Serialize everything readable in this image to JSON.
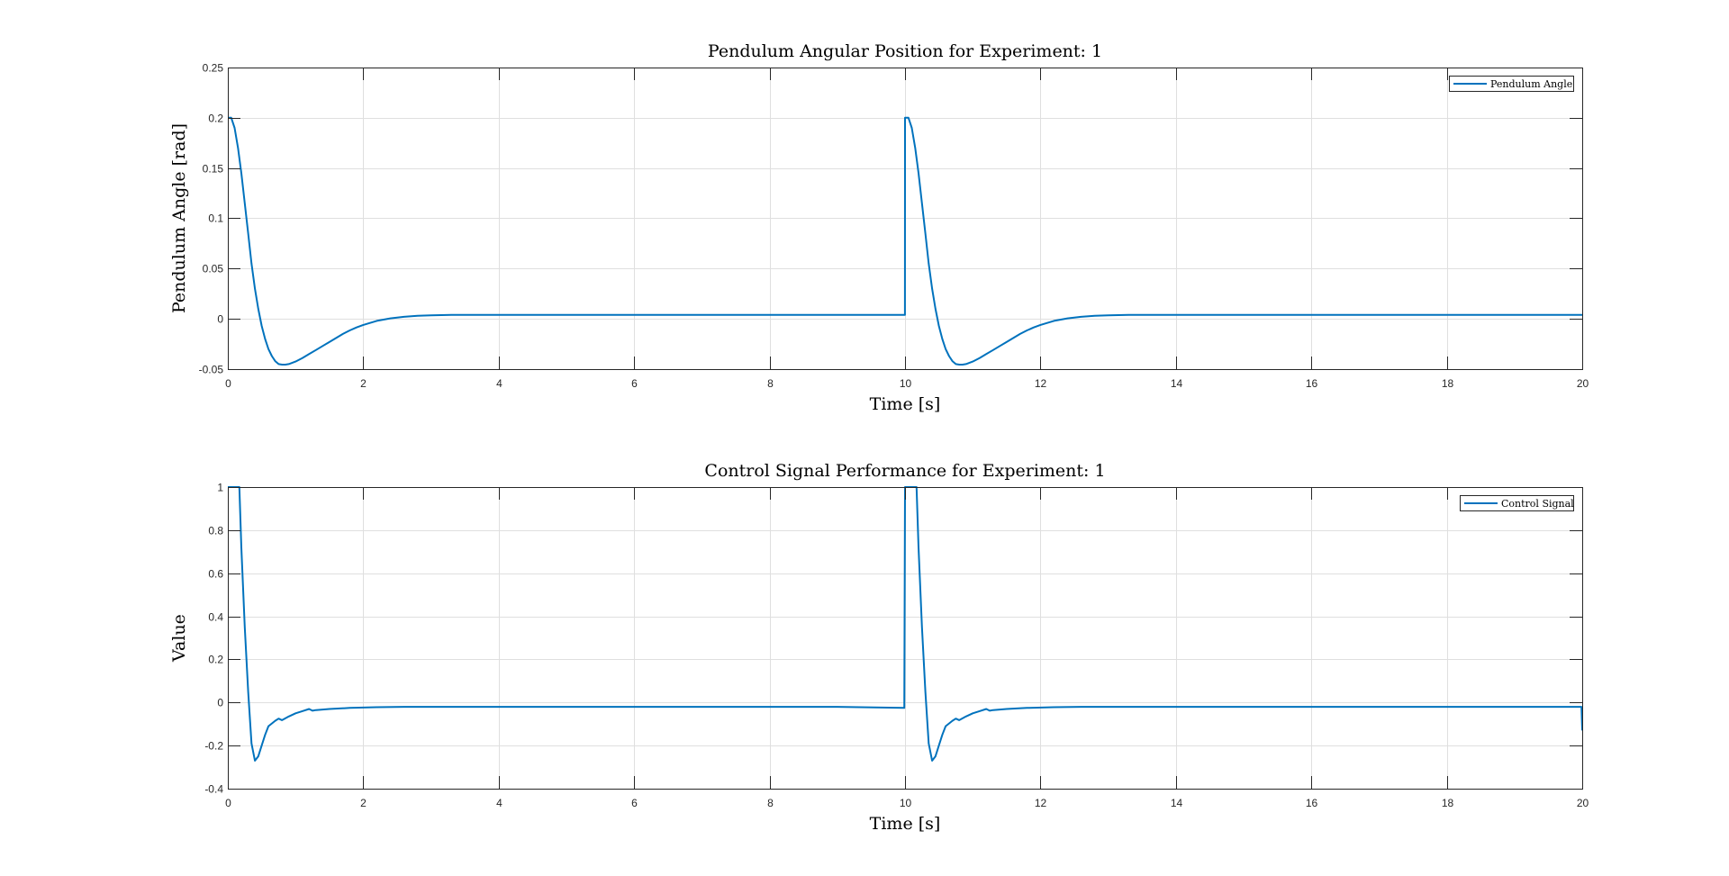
{
  "chart_data": [
    {
      "type": "line",
      "title": "Pendulum Angular Position for Experiment: 1",
      "xlabel": "Time [s]",
      "ylabel": "Pendulum Angle [rad]",
      "xlim": [
        0,
        20
      ],
      "ylim": [
        -0.05,
        0.25
      ],
      "xticks": [
        0,
        2,
        4,
        6,
        8,
        10,
        12,
        14,
        16,
        18,
        20
      ],
      "xtick_labels": [
        "0",
        "2",
        "4",
        "6",
        "8",
        "10",
        "12",
        "14",
        "16",
        "18",
        "20"
      ],
      "yticks": [
        -0.05,
        0,
        0.05,
        0.1,
        0.15,
        0.2,
        0.25
      ],
      "ytick_labels": [
        "-0.05",
        "0",
        "0.05",
        "0.1",
        "0.15",
        "0.2",
        "0.25"
      ],
      "grid": true,
      "legend_position": "top-right",
      "series": [
        {
          "name": "Pendulum Angle",
          "color": "#0072BD",
          "x": [
            0,
            0.05,
            0.1,
            0.15,
            0.2,
            0.25,
            0.3,
            0.35,
            0.4,
            0.45,
            0.5,
            0.55,
            0.6,
            0.65,
            0.7,
            0.75,
            0.8,
            0.85,
            0.9,
            1.0,
            1.1,
            1.2,
            1.3,
            1.4,
            1.5,
            1.6,
            1.7,
            1.8,
            1.9,
            2.0,
            2.2,
            2.4,
            2.6,
            2.8,
            3.0,
            3.3,
            3.6,
            4.0,
            4.5,
            5,
            6,
            7,
            8,
            9,
            9.999,
            10.0,
            10.05,
            10.1,
            10.15,
            10.2,
            10.25,
            10.3,
            10.35,
            10.4,
            10.45,
            10.5,
            10.55,
            10.6,
            10.65,
            10.7,
            10.75,
            10.8,
            10.85,
            10.9,
            11.0,
            11.1,
            11.2,
            11.3,
            11.4,
            11.5,
            11.6,
            11.7,
            11.8,
            11.9,
            12.0,
            12.2,
            12.4,
            12.6,
            12.8,
            13.0,
            13.3,
            13.6,
            14.0,
            14.5,
            15,
            16,
            17,
            18,
            19,
            20
          ],
          "y": [
            0.2,
            0.2,
            0.19,
            0.17,
            0.145,
            0.115,
            0.085,
            0.055,
            0.03,
            0.01,
            -0.007,
            -0.02,
            -0.03,
            -0.037,
            -0.042,
            -0.045,
            -0.0455,
            -0.0455,
            -0.045,
            -0.0425,
            -0.039,
            -0.035,
            -0.031,
            -0.027,
            -0.023,
            -0.019,
            -0.015,
            -0.0115,
            -0.0085,
            -0.006,
            -0.002,
            0.0005,
            0.002,
            0.003,
            0.0035,
            0.004,
            0.004,
            0.004,
            0.004,
            0.004,
            0.004,
            0.004,
            0.004,
            0.004,
            0.004,
            0.2,
            0.2,
            0.19,
            0.17,
            0.145,
            0.115,
            0.085,
            0.055,
            0.03,
            0.01,
            -0.007,
            -0.02,
            -0.03,
            -0.037,
            -0.042,
            -0.045,
            -0.0455,
            -0.0455,
            -0.045,
            -0.0425,
            -0.039,
            -0.035,
            -0.031,
            -0.027,
            -0.023,
            -0.019,
            -0.015,
            -0.0115,
            -0.0085,
            -0.006,
            -0.002,
            0.0005,
            0.002,
            0.003,
            0.0035,
            0.004,
            0.004,
            0.004,
            0.004,
            0.004,
            0.004,
            0.004,
            0.004,
            0.004,
            0.004
          ]
        }
      ]
    },
    {
      "type": "line",
      "title": "Control Signal Performance for Experiment: 1",
      "xlabel": "Time [s]",
      "ylabel": "Value",
      "xlim": [
        0,
        20
      ],
      "ylim": [
        -0.4,
        1
      ],
      "xticks": [
        0,
        2,
        4,
        6,
        8,
        10,
        12,
        14,
        16,
        18,
        20
      ],
      "xtick_labels": [
        "0",
        "2",
        "4",
        "6",
        "8",
        "10",
        "12",
        "14",
        "16",
        "18",
        "20"
      ],
      "yticks": [
        -0.4,
        -0.2,
        0,
        0.2,
        0.4,
        0.6,
        0.8,
        1
      ],
      "ytick_labels": [
        "-0.4",
        "-0.2",
        "0",
        "0.2",
        "0.4",
        "0.6",
        "0.8",
        "1"
      ],
      "grid": true,
      "legend_position": "top-right",
      "series": [
        {
          "name": "Control Signal",
          "color": "#0072BD",
          "x": [
            0,
            0.17,
            0.2,
            0.25,
            0.3,
            0.35,
            0.4,
            0.45,
            0.5,
            0.55,
            0.6,
            0.7,
            0.75,
            0.8,
            0.9,
            1.0,
            1.1,
            1.2,
            1.25,
            1.3,
            1.5,
            1.8,
            2.2,
            2.6,
            3,
            4,
            5,
            6,
            7,
            8,
            9,
            9.99,
            10.0,
            10.17,
            10.2,
            10.25,
            10.3,
            10.35,
            10.4,
            10.45,
            10.5,
            10.55,
            10.6,
            10.7,
            10.75,
            10.8,
            10.9,
            11.0,
            11.1,
            11.2,
            11.25,
            11.3,
            11.5,
            11.8,
            12.2,
            12.6,
            13,
            14,
            15,
            16,
            17,
            18,
            19,
            19.99,
            20.0
          ],
          "y": [
            1,
            1,
            0.72,
            0.35,
            0.05,
            -0.19,
            -0.27,
            -0.25,
            -0.2,
            -0.15,
            -0.11,
            -0.085,
            -0.075,
            -0.082,
            -0.065,
            -0.05,
            -0.04,
            -0.03,
            -0.038,
            -0.035,
            -0.03,
            -0.025,
            -0.022,
            -0.02,
            -0.02,
            -0.02,
            -0.02,
            -0.02,
            -0.02,
            -0.02,
            -0.02,
            -0.025,
            1,
            1,
            0.72,
            0.35,
            0.05,
            -0.19,
            -0.27,
            -0.25,
            -0.2,
            -0.15,
            -0.11,
            -0.085,
            -0.075,
            -0.082,
            -0.065,
            -0.05,
            -0.04,
            -0.03,
            -0.038,
            -0.035,
            -0.03,
            -0.025,
            -0.022,
            -0.02,
            -0.02,
            -0.02,
            -0.02,
            -0.02,
            -0.02,
            -0.02,
            -0.02,
            -0.02,
            -0.13
          ]
        }
      ]
    }
  ]
}
